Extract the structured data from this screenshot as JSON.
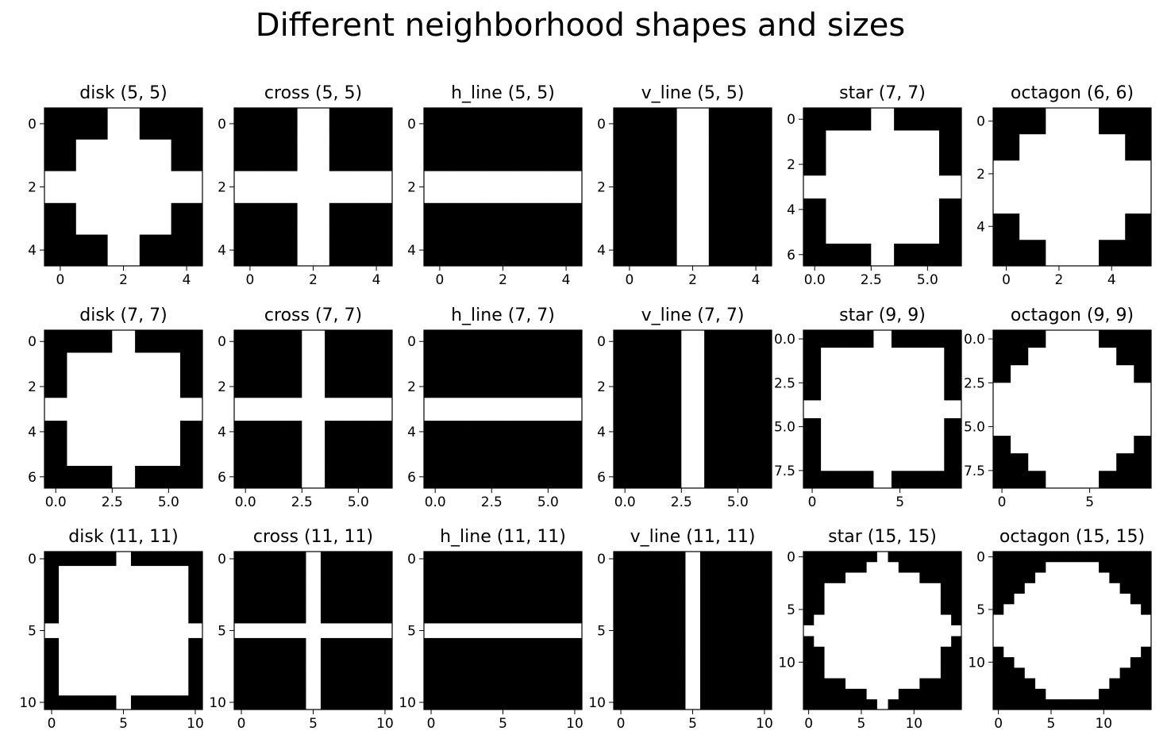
{
  "title": "Different neighborhood shapes and sizes",
  "chart_data": [
    {
      "type": "heatmap",
      "shape": "disk",
      "title": "disk (5, 5)",
      "size": [
        5,
        5
      ],
      "xticks": [
        0,
        2,
        4
      ],
      "yticks": [
        0,
        2,
        4
      ],
      "xtick_labels": [
        "0",
        "2",
        "4"
      ],
      "ytick_labels": [
        "0",
        "2",
        "4"
      ],
      "rows": [
        "00100",
        "01110",
        "11111",
        "01110",
        "00100"
      ]
    },
    {
      "type": "heatmap",
      "shape": "cross",
      "title": "cross (5, 5)",
      "size": [
        5,
        5
      ],
      "xticks": [
        0,
        2,
        4
      ],
      "yticks": [
        0,
        2,
        4
      ],
      "xtick_labels": [
        "0",
        "2",
        "4"
      ],
      "ytick_labels": [
        "0",
        "2",
        "4"
      ],
      "rows": [
        "00100",
        "00100",
        "11111",
        "00100",
        "00100"
      ]
    },
    {
      "type": "heatmap",
      "shape": "h_line",
      "title": "h_line (5, 5)",
      "size": [
        5,
        5
      ],
      "xticks": [
        0,
        2,
        4
      ],
      "yticks": [
        0,
        2,
        4
      ],
      "xtick_labels": [
        "0",
        "2",
        "4"
      ],
      "ytick_labels": [
        "0",
        "2",
        "4"
      ],
      "rows": [
        "00000",
        "00000",
        "11111",
        "00000",
        "00000"
      ]
    },
    {
      "type": "heatmap",
      "shape": "v_line",
      "title": "v_line (5, 5)",
      "size": [
        5,
        5
      ],
      "xticks": [
        0,
        2,
        4
      ],
      "yticks": [
        0,
        2,
        4
      ],
      "xtick_labels": [
        "0",
        "2",
        "4"
      ],
      "ytick_labels": [
        "0",
        "2",
        "4"
      ],
      "rows": [
        "00100",
        "00100",
        "00100",
        "00100",
        "00100"
      ]
    },
    {
      "type": "heatmap",
      "shape": "star",
      "title": "star (7, 7)",
      "size": [
        7,
        7
      ],
      "xticks": [
        0,
        2.5,
        5
      ],
      "yticks": [
        0,
        2,
        4,
        6
      ],
      "xtick_labels": [
        "0.0",
        "2.5",
        "5.0"
      ],
      "ytick_labels": [
        "0",
        "2",
        "4",
        "6"
      ],
      "rows": [
        "0001000",
        "0111110",
        "0111110",
        "1111111",
        "0111110",
        "0111110",
        "0001000"
      ]
    },
    {
      "type": "heatmap",
      "shape": "octagon",
      "title": "octagon (6, 6)",
      "size": [
        6,
        6
      ],
      "xticks": [
        0,
        2,
        4
      ],
      "yticks": [
        0,
        2,
        4
      ],
      "xtick_labels": [
        "0",
        "2",
        "4"
      ],
      "ytick_labels": [
        "0",
        "2",
        "4"
      ],
      "rows": [
        "001100",
        "011110",
        "111111",
        "111111",
        "011110",
        "001100"
      ]
    },
    {
      "type": "heatmap",
      "shape": "disk",
      "title": "disk (7, 7)",
      "size": [
        7,
        7
      ],
      "xticks": [
        0,
        2.5,
        5
      ],
      "yticks": [
        0,
        2,
        4,
        6
      ],
      "xtick_labels": [
        "0.0",
        "2.5",
        "5.0"
      ],
      "ytick_labels": [
        "0",
        "2",
        "4",
        "6"
      ],
      "rows": [
        "0001000",
        "0111110",
        "0111110",
        "1111111",
        "0111110",
        "0111110",
        "0001000"
      ]
    },
    {
      "type": "heatmap",
      "shape": "cross",
      "title": "cross (7, 7)",
      "size": [
        7,
        7
      ],
      "xticks": [
        0,
        2.5,
        5
      ],
      "yticks": [
        0,
        2,
        4,
        6
      ],
      "xtick_labels": [
        "0.0",
        "2.5",
        "5.0"
      ],
      "ytick_labels": [
        "0",
        "2",
        "4",
        "6"
      ],
      "rows": [
        "0001000",
        "0001000",
        "0001000",
        "1111111",
        "0001000",
        "0001000",
        "0001000"
      ]
    },
    {
      "type": "heatmap",
      "shape": "h_line",
      "title": "h_line (7, 7)",
      "size": [
        7,
        7
      ],
      "xticks": [
        0,
        2.5,
        5
      ],
      "yticks": [
        0,
        2,
        4,
        6
      ],
      "xtick_labels": [
        "0.0",
        "2.5",
        "5.0"
      ],
      "ytick_labels": [
        "0",
        "2",
        "4",
        "6"
      ],
      "rows": [
        "0000000",
        "0000000",
        "0000000",
        "1111111",
        "0000000",
        "0000000",
        "0000000"
      ]
    },
    {
      "type": "heatmap",
      "shape": "v_line",
      "title": "v_line (7, 7)",
      "size": [
        7,
        7
      ],
      "xticks": [
        0,
        2.5,
        5
      ],
      "yticks": [
        0,
        2,
        4,
        6
      ],
      "xtick_labels": [
        "0.0",
        "2.5",
        "5.0"
      ],
      "ytick_labels": [
        "0",
        "2",
        "4",
        "6"
      ],
      "rows": [
        "0001000",
        "0001000",
        "0001000",
        "0001000",
        "0001000",
        "0001000",
        "0001000"
      ]
    },
    {
      "type": "heatmap",
      "shape": "star",
      "title": "star (9, 9)",
      "size": [
        9,
        9
      ],
      "xticks": [
        0,
        5
      ],
      "yticks": [
        0,
        2.5,
        5,
        7.5
      ],
      "xtick_labels": [
        "0",
        "5"
      ],
      "ytick_labels": [
        "0.0",
        "2.5",
        "5.0",
        "7.5"
      ],
      "rows": [
        "000010000",
        "011111110",
        "011111110",
        "011111110",
        "111111111",
        "011111110",
        "011111110",
        "011111110",
        "000010000"
      ]
    },
    {
      "type": "heatmap",
      "shape": "octagon",
      "title": "octagon (9, 9)",
      "size": [
        9,
        9
      ],
      "xticks": [
        0,
        5
      ],
      "yticks": [
        0,
        2.5,
        5,
        7.5
      ],
      "xtick_labels": [
        "0",
        "5"
      ],
      "ytick_labels": [
        "0.0",
        "2.5",
        "5.0",
        "7.5"
      ],
      "rows": [
        "000111000",
        "001111100",
        "011111110",
        "111111111",
        "111111111",
        "111111111",
        "011111110",
        "001111100",
        "000111000"
      ]
    },
    {
      "type": "heatmap",
      "shape": "disk",
      "title": "disk (11, 11)",
      "size": [
        11,
        11
      ],
      "xticks": [
        0,
        5,
        10
      ],
      "yticks": [
        0,
        5,
        10
      ],
      "xtick_labels": [
        "0",
        "5",
        "10"
      ],
      "ytick_labels": [
        "0",
        "5",
        "10"
      ],
      "rows": [
        "00000100000",
        "01111111110",
        "01111111110",
        "01111111110",
        "01111111110",
        "11111111111",
        "01111111110",
        "01111111110",
        "01111111110",
        "01111111110",
        "00000100000"
      ]
    },
    {
      "type": "heatmap",
      "shape": "cross",
      "title": "cross (11, 11)",
      "size": [
        11,
        11
      ],
      "xticks": [
        0,
        5,
        10
      ],
      "yticks": [
        0,
        5,
        10
      ],
      "xtick_labels": [
        "0",
        "5",
        "10"
      ],
      "ytick_labels": [
        "0",
        "5",
        "10"
      ],
      "rows": [
        "00000100000",
        "00000100000",
        "00000100000",
        "00000100000",
        "00000100000",
        "11111111111",
        "00000100000",
        "00000100000",
        "00000100000",
        "00000100000",
        "00000100000"
      ]
    },
    {
      "type": "heatmap",
      "shape": "h_line",
      "title": "h_line (11, 11)",
      "size": [
        11,
        11
      ],
      "xticks": [
        0,
        5,
        10
      ],
      "yticks": [
        0,
        5,
        10
      ],
      "xtick_labels": [
        "0",
        "5",
        "10"
      ],
      "ytick_labels": [
        "0",
        "5",
        "10"
      ],
      "rows": [
        "00000000000",
        "00000000000",
        "00000000000",
        "00000000000",
        "00000000000",
        "11111111111",
        "00000000000",
        "00000000000",
        "00000000000",
        "00000000000",
        "00000000000"
      ]
    },
    {
      "type": "heatmap",
      "shape": "v_line",
      "title": "v_line (11, 11)",
      "size": [
        11,
        11
      ],
      "xticks": [
        0,
        5,
        10
      ],
      "yticks": [
        0,
        5,
        10
      ],
      "xtick_labels": [
        "0",
        "5",
        "10"
      ],
      "ytick_labels": [
        "0",
        "5",
        "10"
      ],
      "rows": [
        "00000100000",
        "00000100000",
        "00000100000",
        "00000100000",
        "00000100000",
        "00000100000",
        "00000100000",
        "00000100000",
        "00000100000",
        "00000100000",
        "00000100000"
      ]
    },
    {
      "type": "heatmap",
      "shape": "star",
      "title": "star (15, 15)",
      "size": [
        15,
        15
      ],
      "xticks": [
        0,
        5,
        10
      ],
      "yticks": [
        0,
        5,
        10
      ],
      "xtick_labels": [
        "0",
        "5",
        "10"
      ],
      "ytick_labels": [
        "0",
        "5",
        "10"
      ],
      "rows": [
        "000000010000000",
        "000000111000000",
        "000011111110000",
        "001111111111100",
        "001111111111100",
        "001111111111100",
        "011111111111110",
        "111111111111111",
        "011111111111110",
        "001111111111100",
        "001111111111100",
        "001111111111100",
        "000011111110000",
        "000000111000000",
        "000000010000000"
      ]
    },
    {
      "type": "heatmap",
      "shape": "octagon",
      "title": "octagon (15, 15)",
      "size": [
        15,
        15
      ],
      "xticks": [
        0,
        5,
        10
      ],
      "yticks": [
        0,
        5,
        10
      ],
      "xtick_labels": [
        "0",
        "5",
        "10"
      ],
      "ytick_labels": [
        "0",
        "5",
        "10"
      ],
      "rows": [
        "000000000000000",
        "000001111100000",
        "000011111110000",
        "000111111111000",
        "001111111111100",
        "011111111111110",
        "111111111111111",
        "111111111111111",
        "111111111111111",
        "011111111111110",
        "001111111111100",
        "000111111111000",
        "000011111110000",
        "000001111100000",
        "000000000000000"
      ]
    }
  ],
  "colors": {
    "on": "#ffffff",
    "off": "#000000",
    "axis": "#000000"
  }
}
